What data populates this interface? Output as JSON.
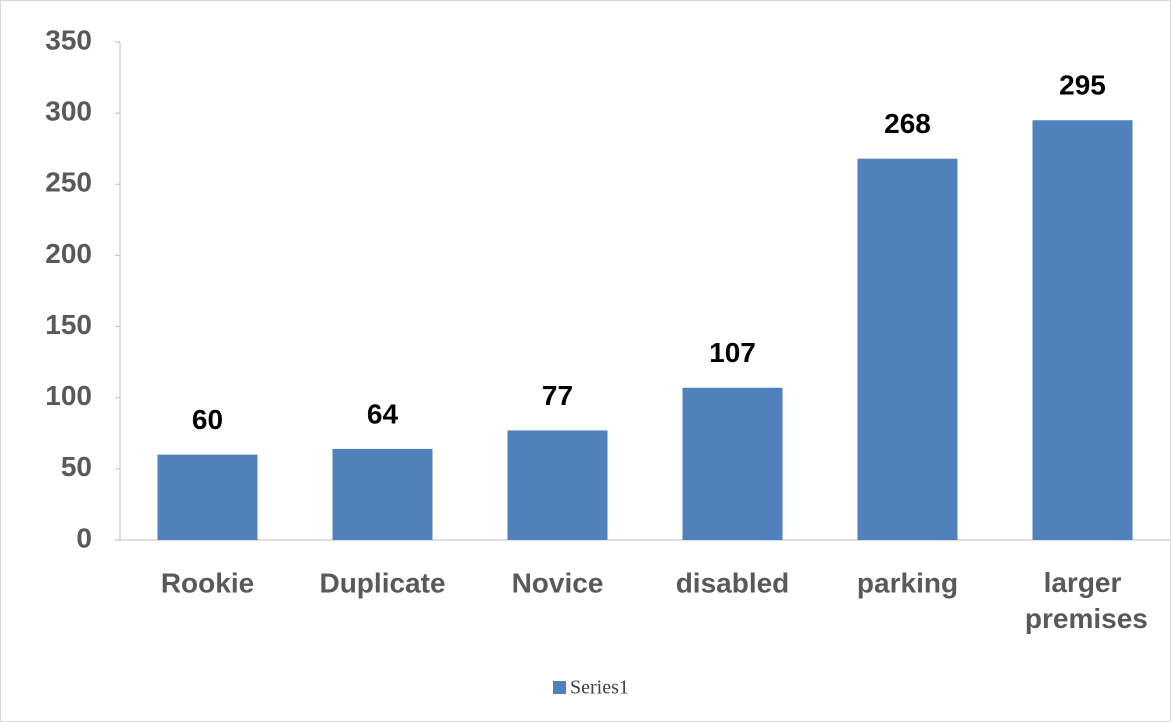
{
  "chart_data": {
    "type": "bar",
    "categories": [
      "Rookie",
      "Duplicate",
      "Novice",
      "disabled",
      "parking",
      "larger premises"
    ],
    "series": [
      {
        "name": "Series1",
        "color": "#4f81bd",
        "values": [
          60,
          64,
          77,
          107,
          268,
          295
        ]
      }
    ],
    "ylim": [
      0,
      350
    ],
    "yticks": [
      0,
      50,
      100,
      150,
      200,
      250,
      300,
      350
    ],
    "grid": false,
    "legend": "bottom"
  }
}
